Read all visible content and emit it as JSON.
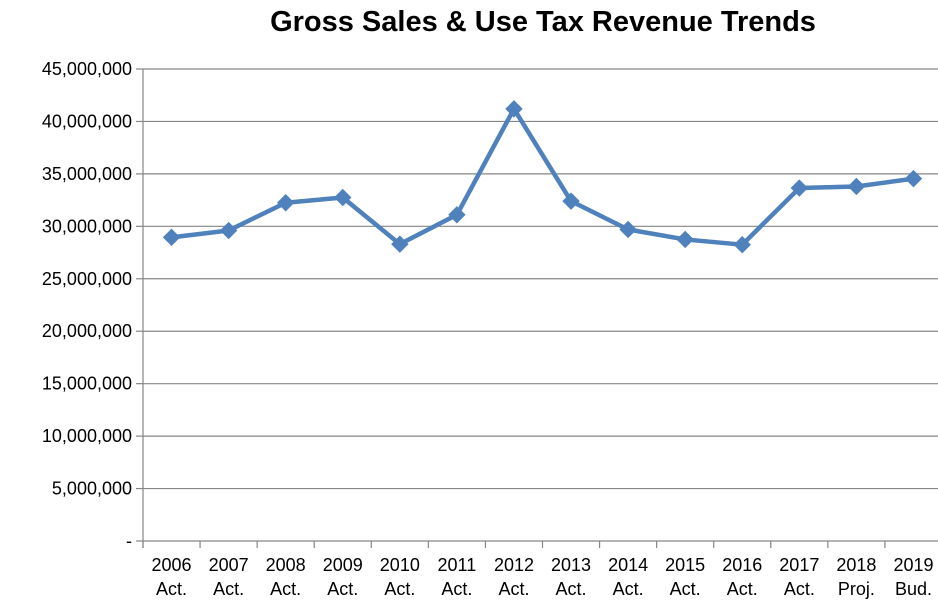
{
  "chart_data": {
    "type": "line",
    "title": "Gross Sales & Use Tax Revenue Trends",
    "categories": [
      [
        "2006",
        "Act."
      ],
      [
        "2007",
        "Act."
      ],
      [
        "2008",
        "Act."
      ],
      [
        "2009",
        "Act."
      ],
      [
        "2010",
        "Act."
      ],
      [
        "2011",
        "Act."
      ],
      [
        "2012",
        "Act."
      ],
      [
        "2013",
        "Act."
      ],
      [
        "2014",
        "Act."
      ],
      [
        "2015",
        "Act."
      ],
      [
        "2016",
        "Act."
      ],
      [
        "2017",
        "Act."
      ],
      [
        "2018",
        "Proj."
      ],
      [
        "2019",
        "Bud."
      ]
    ],
    "series": [
      {
        "values": [
          28950000,
          29600000,
          32250000,
          32750000,
          28300000,
          31100000,
          41200000,
          32400000,
          29700000,
          28750000,
          28250000,
          33650000,
          33800000,
          34550000
        ]
      }
    ],
    "ylim": [
      0,
      45000000
    ],
    "yticks": [
      0,
      5000000,
      10000000,
      15000000,
      20000000,
      25000000,
      30000000,
      35000000,
      40000000,
      45000000
    ],
    "ytick_labels": [
      "-",
      "5,000,000",
      "10,000,000",
      "15,000,000",
      "20,000,000",
      "25,000,000",
      "30,000,000",
      "35,000,000",
      "40,000,000",
      "45,000,000"
    ],
    "grid": true,
    "legend": "none",
    "colors": {
      "line": "#4f81bd",
      "grid": "#868686",
      "axis": "#868686"
    },
    "marker": "diamond"
  }
}
